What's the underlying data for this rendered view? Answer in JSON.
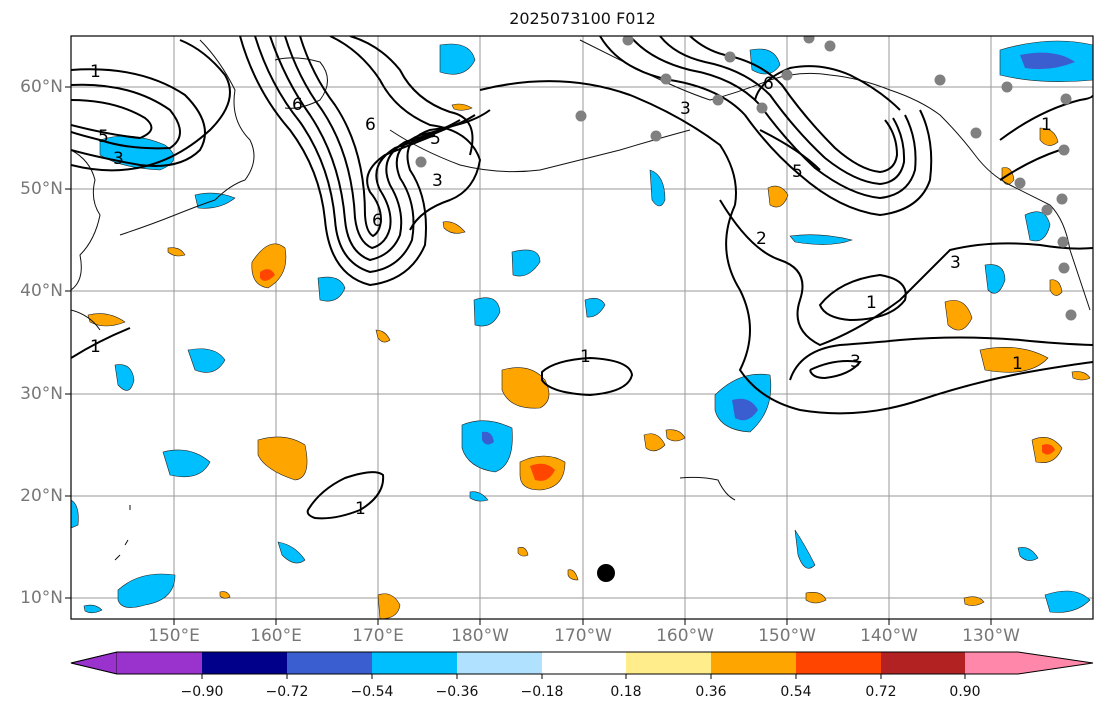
{
  "title": "2025073100 F012",
  "axes": {
    "lat_labels": [
      "60°N",
      "50°N",
      "40°N",
      "30°N",
      "20°N",
      "10°N"
    ],
    "lon_labels": [
      "150°E",
      "160°E",
      "170°E",
      "180°W",
      "170°W",
      "160°W",
      "150°W",
      "140°W",
      "130°W"
    ]
  },
  "contour_labels": [
    "1",
    "5",
    "3",
    "6",
    "6",
    "5",
    "3",
    "6",
    "1",
    "3",
    "6",
    "5",
    "2",
    "3",
    "1",
    "1",
    "1",
    "3",
    "1",
    "1"
  ],
  "colorbar": {
    "ticks": [
      "−0.90",
      "−0.72",
      "−0.54",
      "−0.36",
      "−0.18",
      "0.18",
      "0.36",
      "0.54",
      "0.72",
      "0.90"
    ],
    "colors": [
      "#9a32cd",
      "#00008b",
      "#3a5ecf",
      "#00bfff",
      "#b0e2ff",
      "#ffffff",
      "#ffec8b",
      "#ffa500",
      "#ff4500",
      "#b22222",
      "#ff88aa"
    ]
  },
  "markers": {
    "station_color": "#808080",
    "storm_color": "#000000"
  }
}
